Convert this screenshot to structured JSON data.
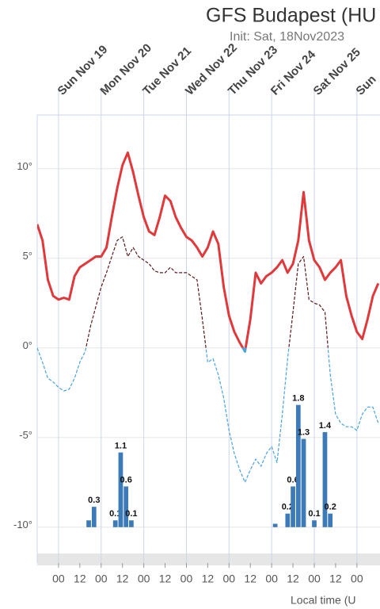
{
  "chart_data": {
    "type": "meteogram",
    "title": "GFS Budapest (HU",
    "subtitle": "Init: Sat, 18Nov2023",
    "x_label": "Local time (U",
    "xlim": [
      -12,
      181
    ],
    "day_ticks": [
      {
        "value": 0,
        "label": "Sun Nov 19"
      },
      {
        "value": 24,
        "label": "Mon Nov 20"
      },
      {
        "value": 48,
        "label": "Tue Nov 21"
      },
      {
        "value": 72,
        "label": "Wed Nov 22"
      },
      {
        "value": 96,
        "label": "Thu Nov 23"
      },
      {
        "value": 120,
        "label": "Fri Nov 24"
      },
      {
        "value": 144,
        "label": "Sat Nov 25"
      },
      {
        "value": 168,
        "label": "Sun"
      }
    ],
    "xticks": [
      {
        "value": 0,
        "label": "00"
      },
      {
        "value": 12,
        "label": "12"
      },
      {
        "value": 24,
        "label": "00"
      },
      {
        "value": 36,
        "label": "12"
      },
      {
        "value": 48,
        "label": "00"
      },
      {
        "value": 60,
        "label": "12"
      },
      {
        "value": 72,
        "label": "00"
      },
      {
        "value": 84,
        "label": "12"
      },
      {
        "value": 96,
        "label": "00"
      },
      {
        "value": 108,
        "label": "12"
      },
      {
        "value": 120,
        "label": "00"
      },
      {
        "value": 132,
        "label": "12"
      },
      {
        "value": 144,
        "label": "00"
      },
      {
        "value": 156,
        "label": "12"
      },
      {
        "value": 168,
        "label": "00"
      }
    ],
    "ylim": [
      -12,
      13
    ],
    "yticks": [
      {
        "value": -10,
        "label": "-10°"
      },
      {
        "value": -5,
        "label": "-5°"
      },
      {
        "value": 0,
        "label": "0°"
      },
      {
        "value": 5,
        "label": "5°"
      },
      {
        "value": 10,
        "label": "10°"
      }
    ],
    "grid": true,
    "x": [
      -12,
      -9,
      -6,
      -3,
      0,
      3,
      6,
      9,
      12,
      15,
      18,
      21,
      24,
      27,
      30,
      33,
      36,
      39,
      42,
      45,
      48,
      51,
      54,
      57,
      60,
      63,
      66,
      69,
      72,
      75,
      78,
      81,
      84,
      87,
      90,
      93,
      96,
      99,
      102,
      105,
      108,
      111,
      114,
      117,
      120,
      123,
      126,
      129,
      132,
      135,
      138,
      141,
      144,
      147,
      150,
      153,
      156,
      159,
      162,
      165,
      168,
      171,
      174,
      177,
      180
    ],
    "series": [
      {
        "color": "#e0393b",
        "negative_color": "#4aa3df",
        "dashed": false,
        "values": [
          6.9,
          6.0,
          3.8,
          2.9,
          2.7,
          2.8,
          2.7,
          4.0,
          4.5,
          4.7,
          4.9,
          5.1,
          5.1,
          5.6,
          7.3,
          8.9,
          10.2,
          10.9,
          9.8,
          8.5,
          7.3,
          6.5,
          6.3,
          7.3,
          8.5,
          8.2,
          7.3,
          6.7,
          6.2,
          6.0,
          5.6,
          5.1,
          5.6,
          6.5,
          5.8,
          3.4,
          1.8,
          0.9,
          0.3,
          -0.2,
          1.6,
          4.2,
          3.6,
          4.0,
          4.2,
          4.5,
          4.9,
          4.2,
          4.7,
          6.0,
          8.7,
          6.0,
          4.9,
          4.5,
          3.8,
          4.2,
          4.5,
          4.9,
          2.9,
          1.8,
          0.9,
          0.5,
          1.6,
          2.9,
          3.6
        ]
      },
      {
        "color": "#5a1a1a",
        "negative_color": "#4aa3df",
        "dashed": true,
        "values": [
          0,
          -0.8,
          -1.7,
          -1.9,
          -2.2,
          -2.4,
          -2.3,
          -1.7,
          -0.8,
          -0.2,
          1.2,
          2.3,
          3.4,
          4.2,
          5.1,
          6.0,
          6.2,
          5.1,
          5.6,
          5.1,
          4.9,
          4.7,
          4.3,
          4.2,
          4.2,
          4.5,
          4.2,
          4.2,
          4.2,
          4.0,
          3.8,
          1.6,
          -0.8,
          -0.6,
          -1.5,
          -2.8,
          -4.6,
          -5.9,
          -6.8,
          -7.5,
          -6.8,
          -6.2,
          -6.6,
          -5.9,
          -5.5,
          -6.4,
          -3.7,
          -0.6,
          2.0,
          4.7,
          5.1,
          2.7,
          2.5,
          2.4,
          2.0,
          -1.5,
          -3.7,
          -4.2,
          -4.4,
          -4.4,
          -4.6,
          -3.7,
          -3.3,
          -3.3,
          -4.2
        ]
      }
    ],
    "precipitation": {
      "color": "#3d7ab8",
      "y2lim": [
        0,
        6
      ],
      "x": [
        17,
        20,
        32,
        35,
        38,
        41,
        122,
        129,
        132,
        135,
        138,
        144,
        150,
        153
      ],
      "values": [
        0.1,
        0.3,
        0.1,
        1.1,
        0.6,
        0.1,
        0.05,
        0.2,
        0.6,
        1.8,
        1.3,
        0.1,
        1.4,
        0.2
      ],
      "value_labels": [
        null,
        "0.3",
        "0.1",
        "1.1",
        "0.6",
        "0.1",
        null,
        "0.2",
        "0.6",
        "1.8",
        "1.3",
        "0.1",
        "1.4",
        "0.2"
      ]
    }
  }
}
